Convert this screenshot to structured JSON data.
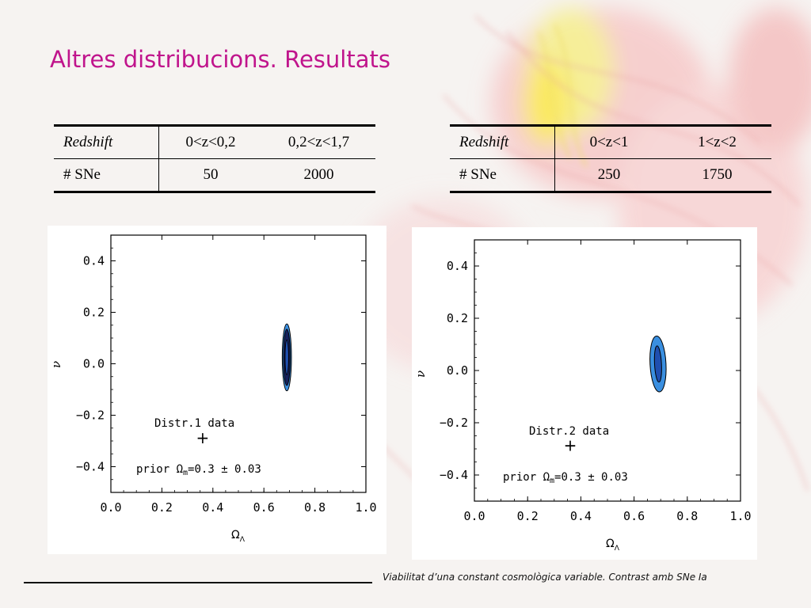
{
  "slide": {
    "title": "Altres distribucions. Resultats",
    "footer": "Viabilitat d’una constant cosmològica variable. Contrast amb SNe Ia"
  },
  "tables": [
    {
      "header": [
        "Redshift",
        "0<z<0,2",
        "0,2<z<1,7"
      ],
      "row": [
        "# SNe",
        "50",
        "2000"
      ]
    },
    {
      "header": [
        "Redshift",
        "0<z<1",
        "1<z<2"
      ],
      "row": [
        "# SNe",
        "250",
        "1750"
      ]
    }
  ],
  "colors": {
    "title": "#c0148c",
    "contour_outer": "#3a8fe0",
    "contour_mid": "#16225e",
    "contour_inner": "#1f4fb0"
  },
  "chart_data": [
    {
      "type": "contour",
      "xlabel": "Ω_Λ",
      "ylabel": "ν",
      "xlim": [
        0.0,
        1.0
      ],
      "ylim": [
        -0.5,
        0.5
      ],
      "xticks": [
        "0.0",
        "0.2",
        "0.4",
        "0.6",
        "0.8",
        "1.0"
      ],
      "yticks": [
        "0.4",
        "0.2",
        "0.0",
        "−0.2",
        "−0.4"
      ],
      "ytick_values": [
        0.4,
        0.2,
        0.0,
        -0.2,
        -0.4
      ],
      "xtick_values": [
        0.0,
        0.2,
        0.4,
        0.6,
        0.8,
        1.0
      ],
      "legend_label": "Distr.1 data",
      "prior_label": "prior Ω_m=0.3 ± 0.03",
      "marker": {
        "x": 0.36,
        "y": -0.29
      },
      "ellipse": {
        "center": [
          0.69,
          0.025
        ],
        "levels": [
          {
            "semi_major": 0.125,
            "semi_minor": 0.018
          },
          {
            "semi_major": 0.105,
            "semi_minor": 0.013
          },
          {
            "semi_major": 0.065,
            "semi_minor": 0.007
          }
        ],
        "angle_deg": -71
      }
    },
    {
      "type": "contour",
      "xlabel": "Ω_Λ",
      "ylabel": "ν",
      "xlim": [
        0.0,
        1.0
      ],
      "ylim": [
        -0.5,
        0.5
      ],
      "xticks": [
        "0.0",
        "0.2",
        "0.4",
        "0.6",
        "0.8",
        "1.0"
      ],
      "yticks": [
        "0.4",
        "0.2",
        "0.0",
        "−0.2",
        "−0.4"
      ],
      "ytick_values": [
        0.4,
        0.2,
        0.0,
        -0.2,
        -0.4
      ],
      "xtick_values": [
        0.0,
        0.2,
        0.4,
        0.6,
        0.8,
        1.0
      ],
      "legend_label": "Distr.2 data",
      "prior_label": "prior Ω_m=0.3 ± 0.03",
      "marker": {
        "x": 0.36,
        "y": -0.29
      },
      "ellipse": {
        "center": [
          0.69,
          0.025
        ],
        "levels": [
          {
            "semi_major": 0.1,
            "semi_minor": 0.03
          },
          {
            "semi_major": 0.065,
            "semi_minor": 0.013
          }
        ],
        "angle_deg": -74
      }
    }
  ]
}
